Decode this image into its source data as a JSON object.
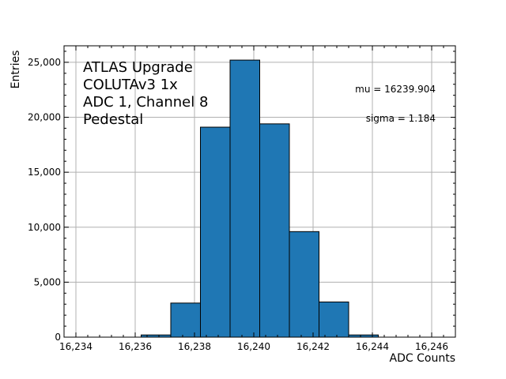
{
  "chart_data": {
    "type": "bar",
    "subtype": "histogram",
    "xlabel": "ADC Counts",
    "ylabel": "Entries",
    "xlim": [
      16233.6,
      16246.8
    ],
    "ylim": [
      0,
      26500
    ],
    "x_ticks": [
      16234,
      16236,
      16238,
      16240,
      16242,
      16244,
      16246
    ],
    "x_tick_labels": [
      "16,234",
      "16,236",
      "16,238",
      "16,240",
      "16,242",
      "16,244",
      "16,246"
    ],
    "y_ticks": [
      0,
      5000,
      10000,
      15000,
      20000,
      25000
    ],
    "y_tick_labels": [
      "0",
      "5,000",
      "10,000",
      "15,000",
      "20,000",
      "25,000"
    ],
    "grid": true,
    "bar_color": "#1f77b4",
    "edge_color": "#000000",
    "bins": [
      {
        "x0": 16234.0,
        "x1": 16235.0,
        "value": 0
      },
      {
        "x0": 16235.0,
        "x1": 16236.0,
        "value": 0
      },
      {
        "x0": 16236.2,
        "x1": 16237.2,
        "value": 200
      },
      {
        "x0": 16237.2,
        "x1": 16238.2,
        "value": 3100
      },
      {
        "x0": 16238.2,
        "x1": 16239.2,
        "value": 19100
      },
      {
        "x0": 16239.2,
        "x1": 16240.2,
        "value": 25200
      },
      {
        "x0": 16240.2,
        "x1": 16241.2,
        "value": 19400
      },
      {
        "x0": 16241.2,
        "x1": 16242.2,
        "value": 9600
      },
      {
        "x0": 16242.2,
        "x1": 16243.2,
        "value": 3200
      },
      {
        "x0": 16243.2,
        "x1": 16244.2,
        "value": 200
      },
      {
        "x0": 16244.2,
        "x1": 16245.2,
        "value": 0
      },
      {
        "x0": 16245.2,
        "x1": 16246.2,
        "value": 0
      }
    ],
    "annotations": {
      "label_lines": [
        "ATLAS Upgrade",
        "COLUTAv3 1x",
        "ADC 1, Channel 8",
        "Pedestal"
      ],
      "mu": "mu = 16239.904",
      "sigma": "sigma = 1.184"
    }
  }
}
